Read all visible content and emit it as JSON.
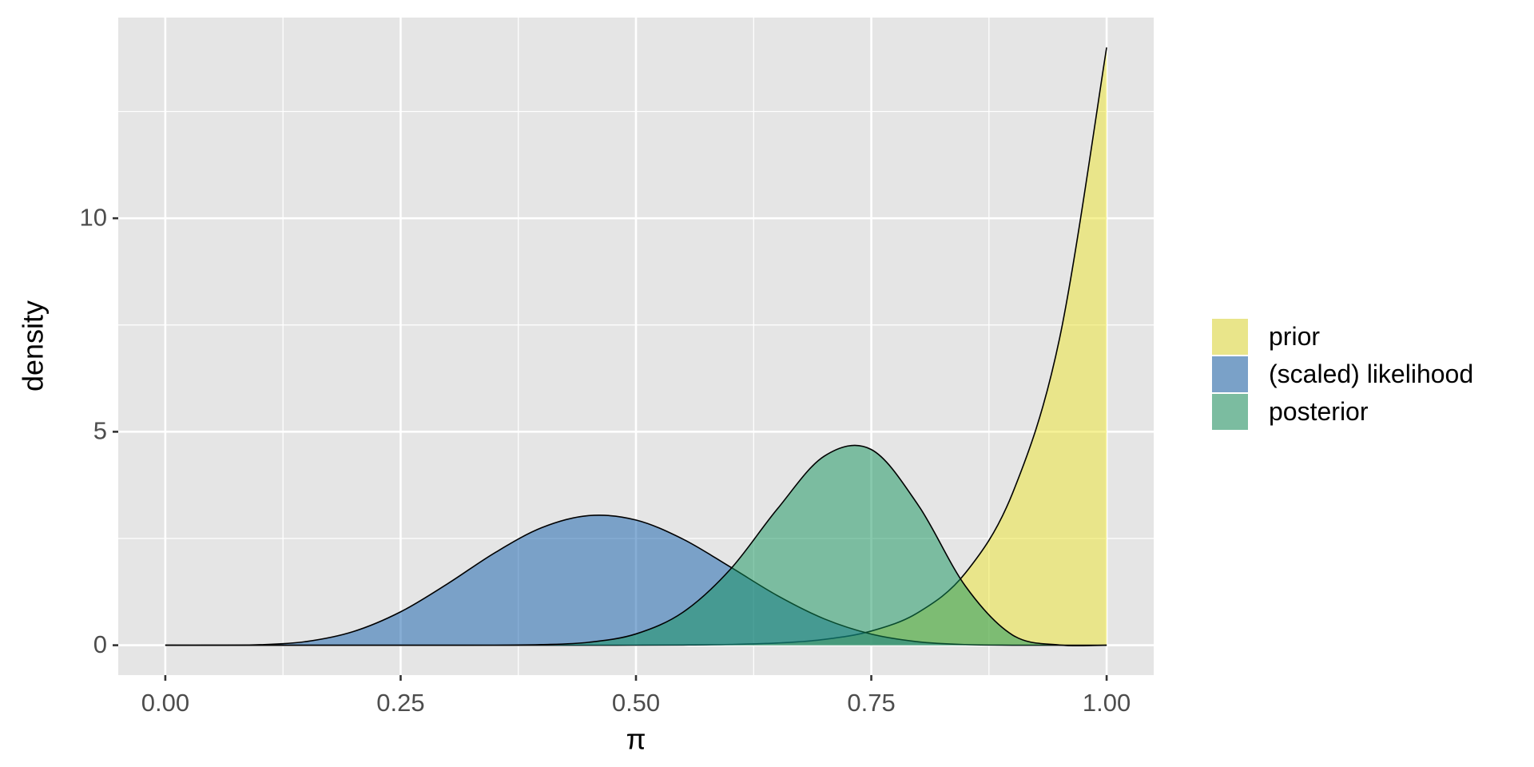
{
  "chart_data": {
    "type": "area",
    "x_label": "π",
    "y_label": "density",
    "x": [
      0,
      0.05,
      0.1,
      0.15,
      0.2,
      0.25,
      0.3,
      0.35,
      0.4,
      0.45,
      0.5,
      0.55,
      0.6,
      0.65,
      0.7,
      0.75,
      0.8,
      0.85,
      0.9,
      0.95,
      1
    ],
    "series": [
      {
        "name": "prior",
        "color": "#ede52f",
        "values": [
          0,
          0,
          0,
          0,
          0,
          0,
          0,
          0,
          0.0001,
          0.0004,
          0.0017,
          0.0059,
          0.0183,
          0.0518,
          0.1356,
          0.3327,
          0.7697,
          1.692,
          3.559,
          7.186,
          14
        ]
      },
      {
        "name": "(scaled) likelihood",
        "color": "#0f5dab",
        "values": [
          0,
          0.0003,
          0.0115,
          0.0877,
          0.3224,
          0.783,
          1.442,
          2.165,
          2.754,
          3.036,
          2.933,
          2.485,
          1.836,
          1.166,
          0.618,
          0.261,
          0.0806,
          0.0155,
          0.0013,
          0,
          0
        ]
      },
      {
        "name": "posterior",
        "color": "#11935b",
        "values": [
          0,
          0,
          0,
          0,
          0,
          0,
          0.0002,
          0.0019,
          0.0137,
          0.0698,
          0.2647,
          0.774,
          1.772,
          3.187,
          4.428,
          4.584,
          3.276,
          1.384,
          0.24,
          0.0052,
          0
        ]
      }
    ],
    "xlim": [
      -0.05,
      1.05
    ],
    "ylim": [
      -0.7,
      14.7
    ],
    "xticks": [
      {
        "value": 0,
        "label": "0.00"
      },
      {
        "value": 0.25,
        "label": "0.25"
      },
      {
        "value": 0.5,
        "label": "0.50"
      },
      {
        "value": 0.75,
        "label": "0.75"
      },
      {
        "value": 1,
        "label": "1.00"
      }
    ],
    "yticks": [
      0,
      5,
      10
    ],
    "grid": true,
    "legend": "right"
  }
}
